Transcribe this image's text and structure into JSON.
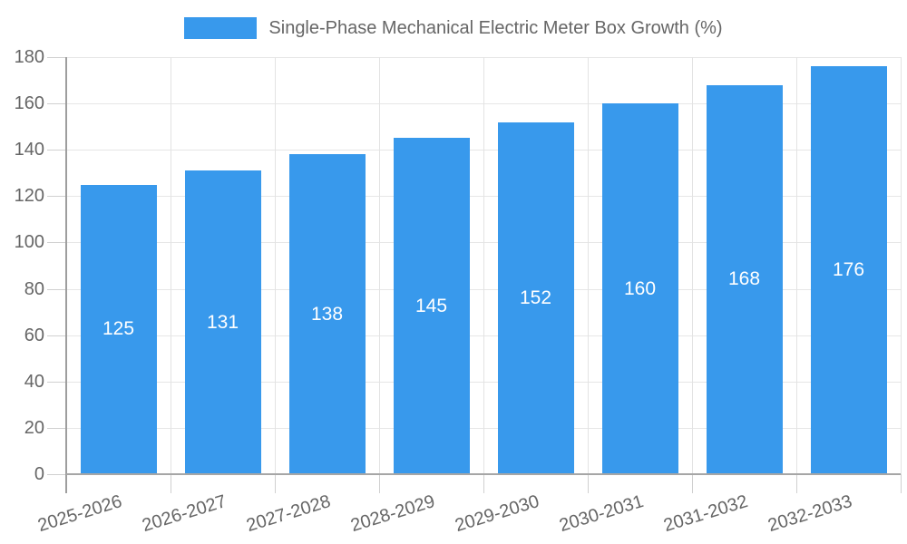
{
  "legend": {
    "label": "Single-Phase Mechanical Electric Meter Box Growth (%)",
    "swatch_color": "#3899ec"
  },
  "chart_data": {
    "type": "bar",
    "title": "Single-Phase Mechanical Electric Meter Box Growth (%)",
    "categories": [
      "2025-2026",
      "2026-2027",
      "2027-2028",
      "2028-2029",
      "2029-2030",
      "2030-2031",
      "2031-2032",
      "2032-2033"
    ],
    "values": [
      125,
      131,
      138,
      145,
      152,
      160,
      168,
      176
    ],
    "value_labels": [
      "125",
      "131",
      "138",
      "145",
      "152",
      "160",
      "168",
      "176"
    ],
    "xlabel": "",
    "ylabel": "",
    "ylim": [
      0,
      180
    ],
    "ytick_step": 20,
    "yticks": [
      "0",
      "20",
      "40",
      "60",
      "80",
      "100",
      "120",
      "140",
      "160",
      "180"
    ],
    "grid": true,
    "legend_position": "top",
    "bar_color": "#3899ec",
    "value_label_color": "#ffffff",
    "axis_text_color": "#666666",
    "grid_color": "#e6e6e6",
    "axis_line_color": "#a0a0a0"
  }
}
